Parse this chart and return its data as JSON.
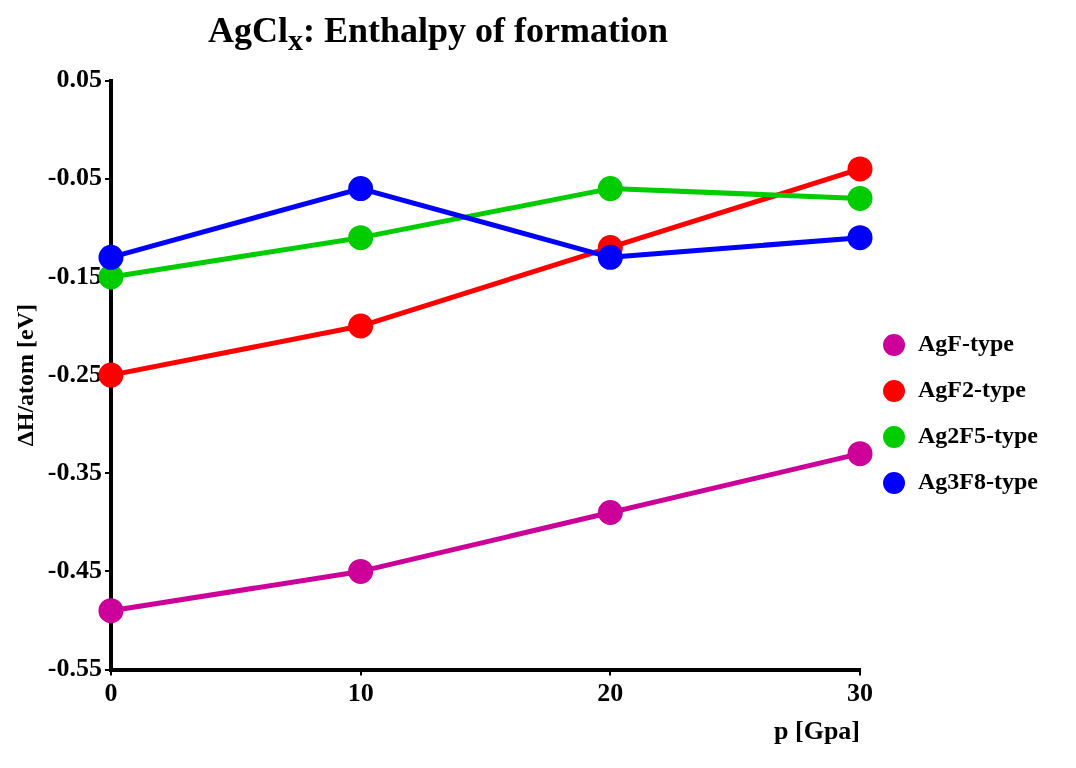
{
  "chart_data": {
    "type": "line",
    "title": "AgCl$_{x}$: Enthalpy of formation",
    "xlabel": "p [Gpa]",
    "ylabel": "ΔH/atom [eV]",
    "x": [
      0,
      10,
      20,
      30
    ],
    "xlim": [
      0,
      30
    ],
    "xticks": [
      0,
      10,
      20,
      30
    ],
    "ylim": [
      -0.55,
      0.05
    ],
    "yticks": [
      -0.55,
      -0.45,
      -0.35,
      -0.25,
      -0.15,
      -0.05,
      0.05
    ],
    "series": [
      {
        "name": "AgF-type",
        "color": "#cc0099",
        "values": [
          -0.49,
          -0.45,
          -0.39,
          -0.33
        ]
      },
      {
        "name": "AgF2-type",
        "color": "#ff0000",
        "values": [
          -0.25,
          -0.2,
          -0.12,
          -0.04
        ]
      },
      {
        "name": "Ag2F5-type",
        "color": "#00cc00",
        "values": [
          -0.15,
          -0.11,
          -0.06,
          -0.07
        ]
      },
      {
        "name": "Ag3F8-type",
        "color": "#0000ff",
        "values": [
          -0.13,
          -0.06,
          -0.13,
          -0.11
        ]
      }
    ],
    "marker": "circle",
    "line_style": "solid",
    "grid": false,
    "legend": "right"
  }
}
